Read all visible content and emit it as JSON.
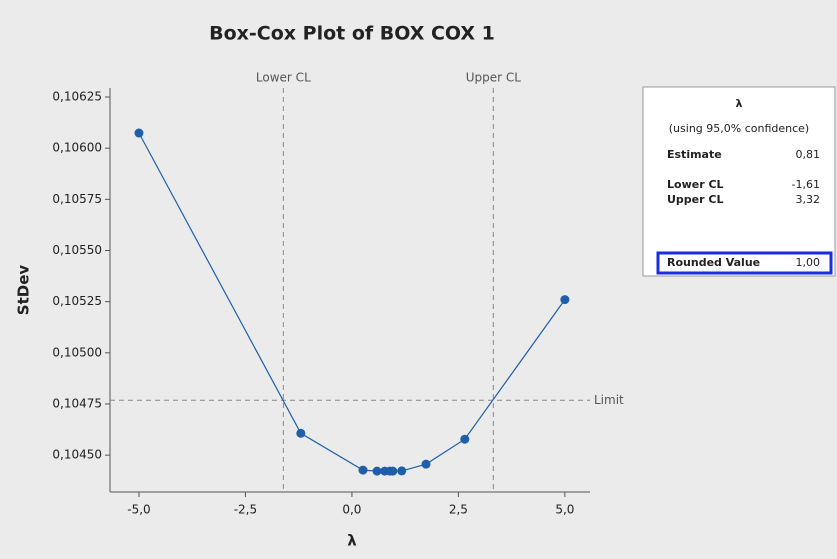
{
  "chart_data": {
    "type": "line",
    "title": "Box-Cox Plot of BOX COX 1",
    "x_label": "λ",
    "y_label": "StDev",
    "x": [
      -5.0,
      -1.2,
      0.26,
      0.59,
      0.77,
      0.89,
      0.96,
      1.17,
      1.74,
      2.65,
      5.0
    ],
    "values": [
      0.106074,
      0.104607,
      0.104427,
      0.104422,
      0.104422,
      0.104422,
      0.104422,
      0.104423,
      0.104456,
      0.104578,
      0.10526
    ],
    "color": "#1f5fa8",
    "xlim": [
      -5.68,
      5.59
    ],
    "ylim": [
      0.10432,
      0.106294
    ],
    "xticks": [
      {
        "value": -5,
        "label": "-5,0"
      },
      {
        "value": -2.5,
        "label": "-2,5"
      },
      {
        "value": 0,
        "label": "0,0"
      },
      {
        "value": 2.5,
        "label": "2,5"
      },
      {
        "value": 5,
        "label": "5,0"
      }
    ],
    "yticks": [
      {
        "value": 0.1045,
        "label": "0,10450"
      },
      {
        "value": 0.10475,
        "label": "0,10475"
      },
      {
        "value": 0.105,
        "label": "0,10500"
      },
      {
        "value": 0.10525,
        "label": "0,10525"
      },
      {
        "value": 0.1055,
        "label": "0,10550"
      },
      {
        "value": 0.10575,
        "label": "0,10575"
      },
      {
        "value": 0.106,
        "label": "0,10600"
      },
      {
        "value": 0.10625,
        "label": "0,10625"
      }
    ],
    "ref_lines": [
      {
        "axis": "x",
        "value": -1.61,
        "label": "Lower CL"
      },
      {
        "axis": "x",
        "value": 3.32,
        "label": "Upper CL"
      },
      {
        "axis": "y",
        "value": 0.104768,
        "label": "Limit"
      }
    ],
    "summary": {
      "title": "λ",
      "note": "(using 95,0% confidence)",
      "rows": [
        {
          "label": "Estimate",
          "value": "0,81"
        },
        {
          "label": "Lower CL",
          "value": "-1,61"
        },
        {
          "label": "Upper CL",
          "value": "3,32"
        },
        {
          "label": "Rounded Value",
          "value": "1,00"
        }
      ]
    }
  }
}
